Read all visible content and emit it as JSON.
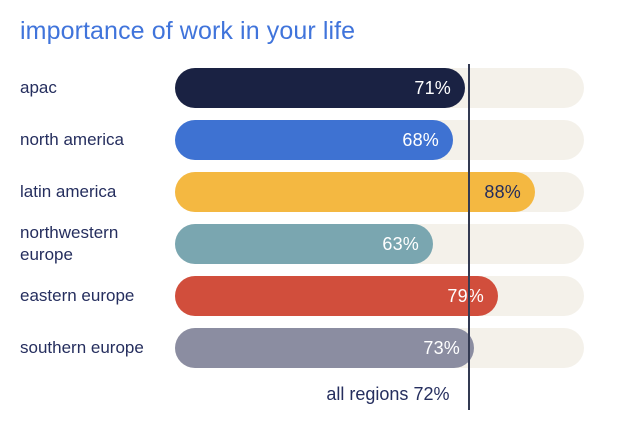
{
  "title": "importance of work in your life",
  "colors": {
    "background": "#ffffff",
    "title_text": "#4074db",
    "category_text": "#252e5e",
    "track": "#f4f1ea",
    "reference_line": "#333a52",
    "reference_label_text": "#252e5e"
  },
  "chart_data": {
    "type": "bar",
    "orientation": "horizontal",
    "title": "importance of work in your life",
    "categories": [
      "apac",
      "north america",
      "latin america",
      "northwestern europe",
      "eastern europe",
      "southern europe"
    ],
    "values": [
      71,
      68,
      88,
      63,
      79,
      73
    ],
    "value_labels": [
      "71%",
      "68%",
      "88%",
      "63%",
      "79%",
      "73%"
    ],
    "bar_colors": [
      "#1a2243",
      "#3e72d2",
      "#f4b841",
      "#7aa6b0",
      "#d14e3c",
      "#8b8da1"
    ],
    "value_label_colors": [
      "#ffffff",
      "#ffffff",
      "#232c5c",
      "#ffffff",
      "#ffffff",
      "#ffffff"
    ],
    "track_color": "#f4f1ea",
    "xlim": [
      0,
      100
    ],
    "grid": false,
    "legend": "none",
    "reference_line": {
      "value": 72,
      "label": "all regions 72%"
    }
  }
}
